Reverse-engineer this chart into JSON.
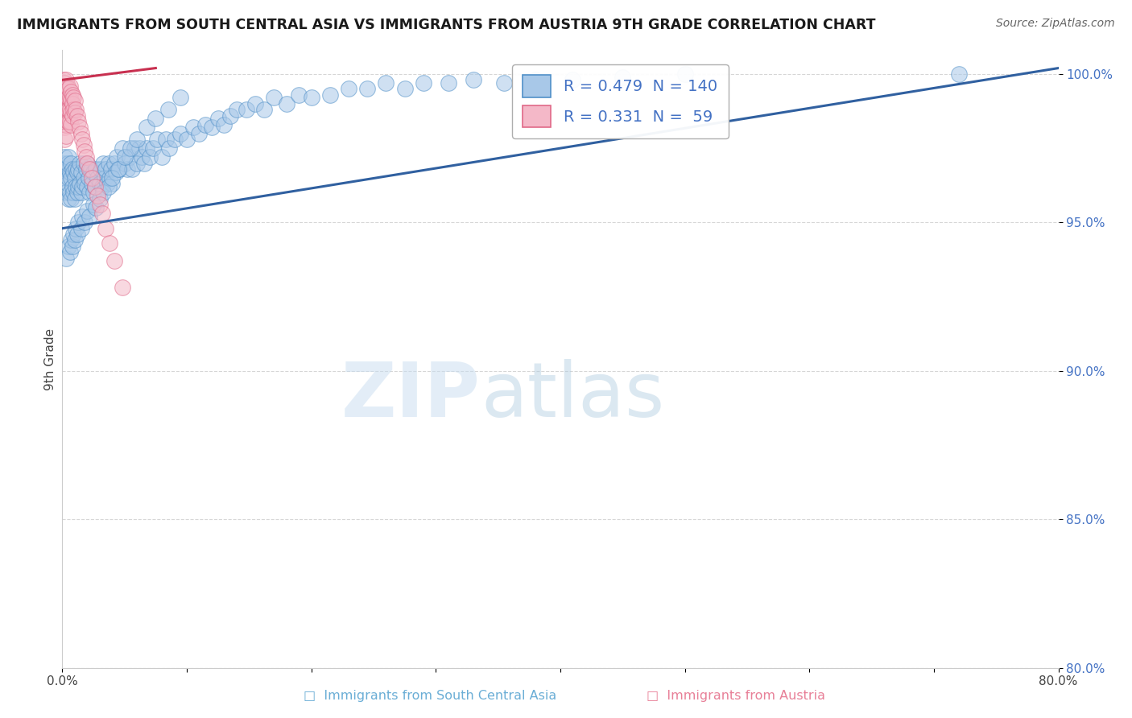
{
  "title": "IMMIGRANTS FROM SOUTH CENTRAL ASIA VS IMMIGRANTS FROM AUSTRIA 9TH GRADE CORRELATION CHART",
  "source": "Source: ZipAtlas.com",
  "ylabel": "9th Grade",
  "xlim": [
    0.0,
    0.8
  ],
  "ylim": [
    0.8,
    1.008
  ],
  "xticks": [
    0.0,
    0.1,
    0.2,
    0.3,
    0.4,
    0.5,
    0.6,
    0.7,
    0.8
  ],
  "xticklabels": [
    "0.0%",
    "",
    "",
    "",
    "",
    "",
    "",
    "",
    "80.0%"
  ],
  "yticks": [
    0.8,
    0.85,
    0.9,
    0.95,
    1.0
  ],
  "yticklabels": [
    "80.0%",
    "85.0%",
    "90.0%",
    "95.0%",
    "100.0%"
  ],
  "series1_color": "#a8c8e8",
  "series2_color": "#f4b8c8",
  "series1_edge": "#5090c8",
  "series2_edge": "#e06888",
  "trend1_color": "#3060a0",
  "trend2_color": "#c83050",
  "watermark_zip": "ZIP",
  "watermark_atlas": "atlas",
  "R1": 0.479,
  "N1": 140,
  "R2": 0.331,
  "N2": 59,
  "blue_x": [
    0.001,
    0.002,
    0.002,
    0.003,
    0.003,
    0.004,
    0.004,
    0.005,
    0.005,
    0.005,
    0.006,
    0.006,
    0.007,
    0.007,
    0.007,
    0.008,
    0.008,
    0.009,
    0.009,
    0.01,
    0.01,
    0.011,
    0.011,
    0.012,
    0.012,
    0.013,
    0.013,
    0.014,
    0.014,
    0.015,
    0.015,
    0.016,
    0.017,
    0.017,
    0.018,
    0.019,
    0.02,
    0.02,
    0.021,
    0.022,
    0.023,
    0.024,
    0.025,
    0.025,
    0.026,
    0.027,
    0.028,
    0.03,
    0.031,
    0.032,
    0.033,
    0.034,
    0.035,
    0.036,
    0.037,
    0.038,
    0.039,
    0.04,
    0.042,
    0.043,
    0.044,
    0.046,
    0.048,
    0.05,
    0.052,
    0.054,
    0.056,
    0.058,
    0.06,
    0.062,
    0.064,
    0.066,
    0.068,
    0.07,
    0.073,
    0.076,
    0.08,
    0.083,
    0.086,
    0.09,
    0.095,
    0.1,
    0.105,
    0.11,
    0.115,
    0.12,
    0.125,
    0.13,
    0.135,
    0.14,
    0.148,
    0.155,
    0.162,
    0.17,
    0.18,
    0.19,
    0.2,
    0.215,
    0.23,
    0.245,
    0.26,
    0.275,
    0.29,
    0.31,
    0.33,
    0.355,
    0.38,
    0.41,
    0.45,
    0.5,
    0.003,
    0.005,
    0.006,
    0.007,
    0.008,
    0.009,
    0.01,
    0.011,
    0.012,
    0.013,
    0.015,
    0.016,
    0.018,
    0.02,
    0.022,
    0.025,
    0.027,
    0.03,
    0.033,
    0.037,
    0.04,
    0.045,
    0.05,
    0.055,
    0.06,
    0.068,
    0.075,
    0.085,
    0.095,
    0.72
  ],
  "blue_y": [
    0.97,
    0.965,
    0.972,
    0.96,
    0.968,
    0.963,
    0.97,
    0.958,
    0.965,
    0.972,
    0.96,
    0.967,
    0.958,
    0.965,
    0.97,
    0.962,
    0.968,
    0.96,
    0.967,
    0.958,
    0.965,
    0.962,
    0.968,
    0.96,
    0.967,
    0.962,
    0.968,
    0.963,
    0.97,
    0.96,
    0.967,
    0.962,
    0.965,
    0.97,
    0.963,
    0.968,
    0.962,
    0.97,
    0.965,
    0.96,
    0.968,
    0.963,
    0.96,
    0.967,
    0.962,
    0.968,
    0.965,
    0.963,
    0.968,
    0.962,
    0.97,
    0.965,
    0.968,
    0.963,
    0.97,
    0.965,
    0.968,
    0.963,
    0.97,
    0.967,
    0.972,
    0.968,
    0.975,
    0.97,
    0.968,
    0.972,
    0.968,
    0.975,
    0.97,
    0.975,
    0.972,
    0.97,
    0.975,
    0.972,
    0.975,
    0.978,
    0.972,
    0.978,
    0.975,
    0.978,
    0.98,
    0.978,
    0.982,
    0.98,
    0.983,
    0.982,
    0.985,
    0.983,
    0.986,
    0.988,
    0.988,
    0.99,
    0.988,
    0.992,
    0.99,
    0.993,
    0.992,
    0.993,
    0.995,
    0.995,
    0.997,
    0.995,
    0.997,
    0.997,
    0.998,
    0.997,
    0.998,
    0.998,
    0.999,
    1.0,
    0.938,
    0.942,
    0.94,
    0.944,
    0.942,
    0.946,
    0.944,
    0.948,
    0.946,
    0.95,
    0.948,
    0.952,
    0.95,
    0.954,
    0.952,
    0.956,
    0.955,
    0.958,
    0.96,
    0.962,
    0.965,
    0.968,
    0.972,
    0.975,
    0.978,
    0.982,
    0.985,
    0.988,
    0.992,
    1.0
  ],
  "pink_x": [
    0.001,
    0.001,
    0.001,
    0.001,
    0.002,
    0.002,
    0.002,
    0.002,
    0.002,
    0.002,
    0.003,
    0.003,
    0.003,
    0.003,
    0.003,
    0.003,
    0.004,
    0.004,
    0.004,
    0.004,
    0.005,
    0.005,
    0.005,
    0.005,
    0.006,
    0.006,
    0.006,
    0.006,
    0.007,
    0.007,
    0.007,
    0.007,
    0.008,
    0.008,
    0.008,
    0.009,
    0.009,
    0.01,
    0.01,
    0.011,
    0.012,
    0.013,
    0.014,
    0.015,
    0.016,
    0.017,
    0.018,
    0.019,
    0.02,
    0.022,
    0.024,
    0.026,
    0.028,
    0.03,
    0.032,
    0.035,
    0.038,
    0.042,
    0.048
  ],
  "pink_y": [
    0.998,
    0.994,
    0.99,
    0.986,
    0.997,
    0.994,
    0.99,
    0.986,
    0.982,
    0.978,
    0.998,
    0.995,
    0.991,
    0.987,
    0.983,
    0.979,
    0.996,
    0.992,
    0.988,
    0.984,
    0.995,
    0.992,
    0.988,
    0.984,
    0.996,
    0.992,
    0.988,
    0.984,
    0.994,
    0.991,
    0.987,
    0.983,
    0.993,
    0.99,
    0.986,
    0.992,
    0.988,
    0.991,
    0.987,
    0.988,
    0.986,
    0.984,
    0.982,
    0.98,
    0.978,
    0.976,
    0.974,
    0.972,
    0.97,
    0.968,
    0.965,
    0.962,
    0.959,
    0.956,
    0.953,
    0.948,
    0.943,
    0.937,
    0.928
  ],
  "trend1_x0": 0.0,
  "trend1_y0": 0.948,
  "trend1_x1": 0.8,
  "trend1_y1": 1.002,
  "trend2_x0": 0.0,
  "trend2_y0": 0.998,
  "trend2_x1": 0.075,
  "trend2_y1": 1.002
}
